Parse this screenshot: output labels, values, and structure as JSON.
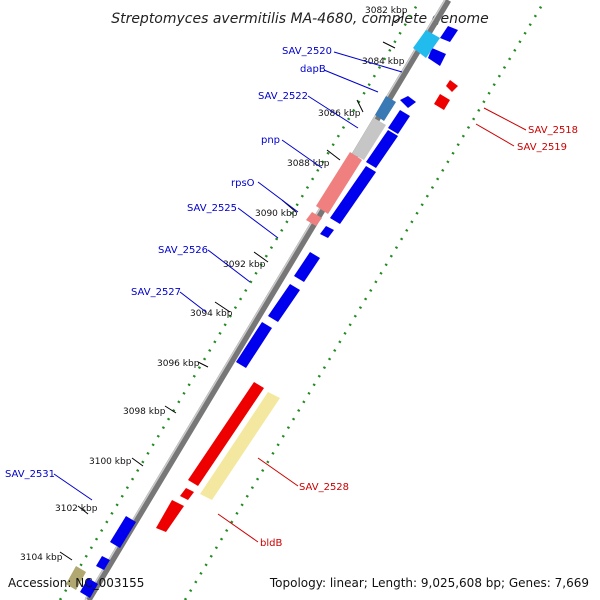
{
  "title": "Streptomyces avermitilis MA-4680, complete genome",
  "footer": {
    "accession": "Accession: NC_003155",
    "topology": "Topology: linear; Length: 9,025,608 bp; Genes: 7,669"
  },
  "colors": {
    "backbone": "#888888",
    "forward_gene": "#0000ee",
    "reverse_gene": "#ee0000",
    "dotted_axis": "#228B22",
    "forward_label": "#0000cc",
    "reverse_label": "#cc0000"
  },
  "kbp_ticks": [
    "3082 kbp",
    "3084 kbp",
    "3086 kbp",
    "3088 kbp",
    "3090 kbp",
    "3092 kbp",
    "3094 kbp",
    "3096 kbp",
    "3098 kbp",
    "3100 kbp",
    "3102 kbp",
    "3104 kbp"
  ],
  "forward_labels": [
    "SAV_2520",
    "dapB",
    "SAV_2522",
    "pnp",
    "rpsO",
    "SAV_2525",
    "SAV_2526",
    "SAV_2527",
    "SAV_2531"
  ],
  "reverse_labels": [
    "SAV_2518",
    "SAV_2519",
    "SAV_2528",
    "bldB"
  ]
}
